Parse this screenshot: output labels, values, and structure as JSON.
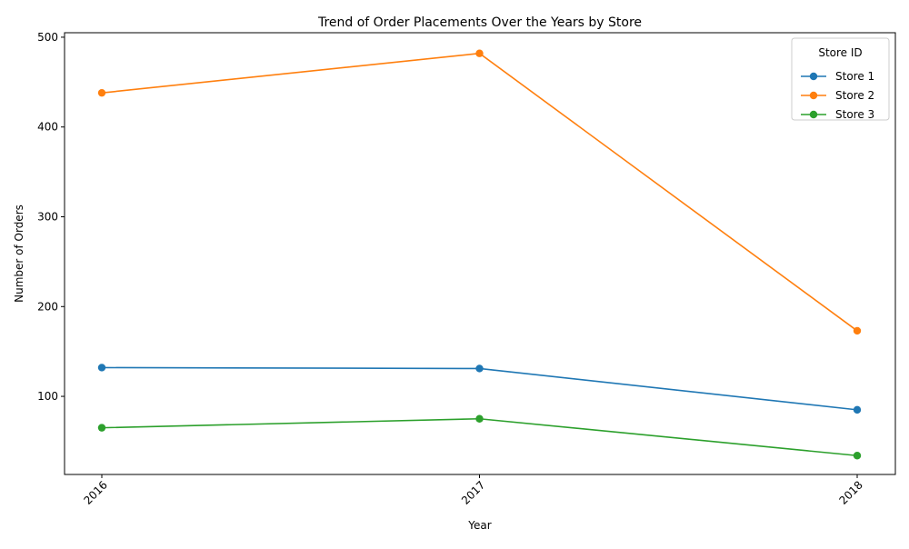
{
  "chart_data": {
    "type": "line",
    "title": "Trend of Order Placements Over the Years by Store",
    "xlabel": "Year",
    "ylabel": "Number of Orders",
    "x": [
      "2016",
      "2017",
      "2018"
    ],
    "ylim": [
      13,
      505
    ],
    "yticks": [
      100,
      200,
      300,
      400,
      500
    ],
    "grid": false,
    "legend": {
      "title": "Store ID",
      "placement": "top-right"
    },
    "series": [
      {
        "name": "Store 1",
        "color": "#1f77b4",
        "values": [
          132,
          131,
          85
        ]
      },
      {
        "name": "Store 2",
        "color": "#ff7f0e",
        "values": [
          438,
          482,
          173
        ]
      },
      {
        "name": "Store 3",
        "color": "#2ca02c",
        "values": [
          65,
          75,
          34
        ]
      }
    ]
  }
}
